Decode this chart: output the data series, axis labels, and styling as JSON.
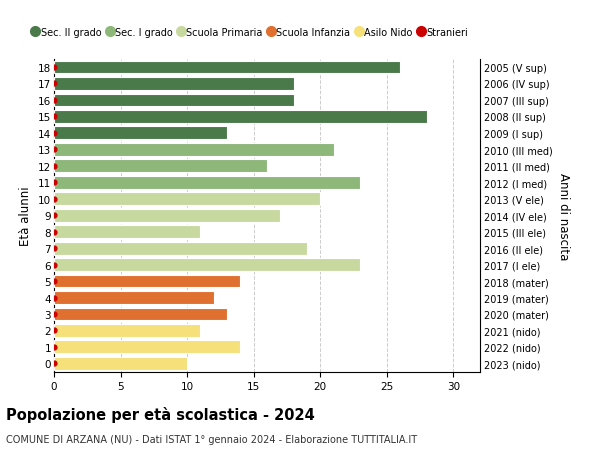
{
  "ages": [
    0,
    1,
    2,
    3,
    4,
    5,
    6,
    7,
    8,
    9,
    10,
    11,
    12,
    13,
    14,
    15,
    16,
    17,
    18
  ],
  "years": [
    "2023 (nido)",
    "2022 (nido)",
    "2021 (nido)",
    "2020 (mater)",
    "2019 (mater)",
    "2018 (mater)",
    "2017 (I ele)",
    "2016 (II ele)",
    "2015 (III ele)",
    "2014 (IV ele)",
    "2013 (V ele)",
    "2012 (I med)",
    "2011 (II med)",
    "2010 (III med)",
    "2009 (I sup)",
    "2008 (II sup)",
    "2007 (III sup)",
    "2006 (IV sup)",
    "2005 (V sup)"
  ],
  "values": [
    10,
    14,
    11,
    13,
    12,
    14,
    23,
    19,
    11,
    17,
    20,
    23,
    16,
    21,
    13,
    28,
    18,
    18,
    26
  ],
  "colors": [
    "#f5e07a",
    "#f5e07a",
    "#f5e07a",
    "#e07030",
    "#e07030",
    "#e07030",
    "#c8d9a0",
    "#c8d9a0",
    "#c8d9a0",
    "#c8d9a0",
    "#c8d9a0",
    "#8db87a",
    "#8db87a",
    "#8db87a",
    "#4a7a4a",
    "#4a7a4a",
    "#4a7a4a",
    "#4a7a4a",
    "#4a7a4a"
  ],
  "legend_labels": [
    "Sec. II grado",
    "Sec. I grado",
    "Scuola Primaria",
    "Scuola Infanzia",
    "Asilo Nido",
    "Stranieri"
  ],
  "legend_colors": [
    "#4a7a4a",
    "#8db87a",
    "#c8d9a0",
    "#e07030",
    "#f5e07a",
    "#cc0000"
  ],
  "title": "Popolazione per età scolastica - 2024",
  "subtitle": "COMUNE DI ARZANA (NU) - Dati ISTAT 1° gennaio 2024 - Elaborazione TUTTITALIA.IT",
  "ylabel": "Età alunni",
  "right_ylabel": "Anni di nascita",
  "xlim": [
    0,
    32
  ],
  "xticks": [
    0,
    5,
    10,
    15,
    20,
    25,
    30
  ],
  "bg_color": "#ffffff",
  "grid_color": "#cccccc"
}
